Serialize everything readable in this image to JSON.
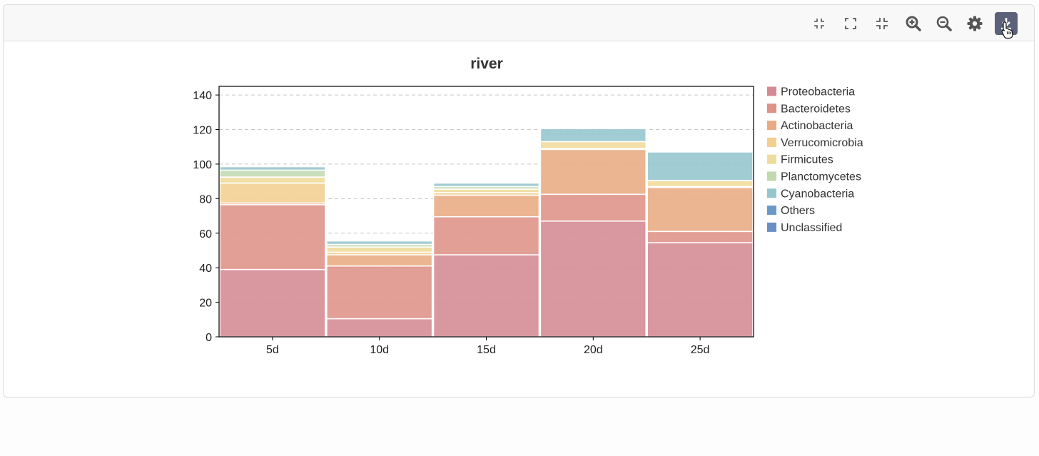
{
  "toolbar": {
    "buttons": [
      {
        "name": "compress-view-icon",
        "label": "Compress view"
      },
      {
        "name": "fullscreen-icon",
        "label": "Full screen"
      },
      {
        "name": "exit-fullscreen-icon",
        "label": "Exit full screen"
      },
      {
        "name": "zoom-in-icon",
        "label": "Zoom in"
      },
      {
        "name": "zoom-out-icon",
        "label": "Zoom out"
      },
      {
        "name": "gear-icon",
        "label": "Settings"
      },
      {
        "name": "download-icon",
        "label": "Download"
      }
    ]
  },
  "chart_data": {
    "type": "bar",
    "stacked": true,
    "title": "river",
    "xlabel": "",
    "ylabel": "",
    "categories": [
      "5d",
      "10d",
      "15d",
      "20d",
      "25d"
    ],
    "ylim": [
      0,
      145
    ],
    "yticks": [
      0,
      20,
      40,
      60,
      80,
      100,
      120,
      140
    ],
    "grid": true,
    "legend_position": "right",
    "series": [
      {
        "name": "Proteobacteria",
        "color": "#d48a92",
        "values": [
          39,
          10.5,
          47.5,
          67,
          54.5
        ]
      },
      {
        "name": "Bacteroidetes",
        "color": "#de9288",
        "values": [
          37.5,
          30.5,
          22,
          15.5,
          6.5
        ]
      },
      {
        "name": "Actinobacteria",
        "color": "#e9ab82",
        "values": [
          1,
          6.5,
          12.5,
          26,
          25.5
        ]
      },
      {
        "name": "Verrucomicrobia",
        "color": "#f1cf8f",
        "values": [
          11.5,
          1.5,
          1.5,
          0.5,
          0.5
        ]
      },
      {
        "name": "Firmicutes",
        "color": "#efdb9b",
        "values": [
          3.5,
          3,
          2,
          4,
          3.5
        ]
      },
      {
        "name": "Planctomycetes",
        "color": "#c2d9b0",
        "values": [
          4,
          1.5,
          1.5,
          0,
          0
        ]
      },
      {
        "name": "Cyanobacteria",
        "color": "#95c5cd",
        "values": [
          2,
          2,
          2,
          7.5,
          16.5
        ]
      },
      {
        "name": "Others",
        "color": "#6a98c9",
        "values": [
          0,
          0,
          0,
          0,
          0
        ]
      },
      {
        "name": "Unclassified",
        "color": "#6b8fc4",
        "values": [
          0,
          0,
          0,
          0,
          0
        ]
      }
    ]
  }
}
